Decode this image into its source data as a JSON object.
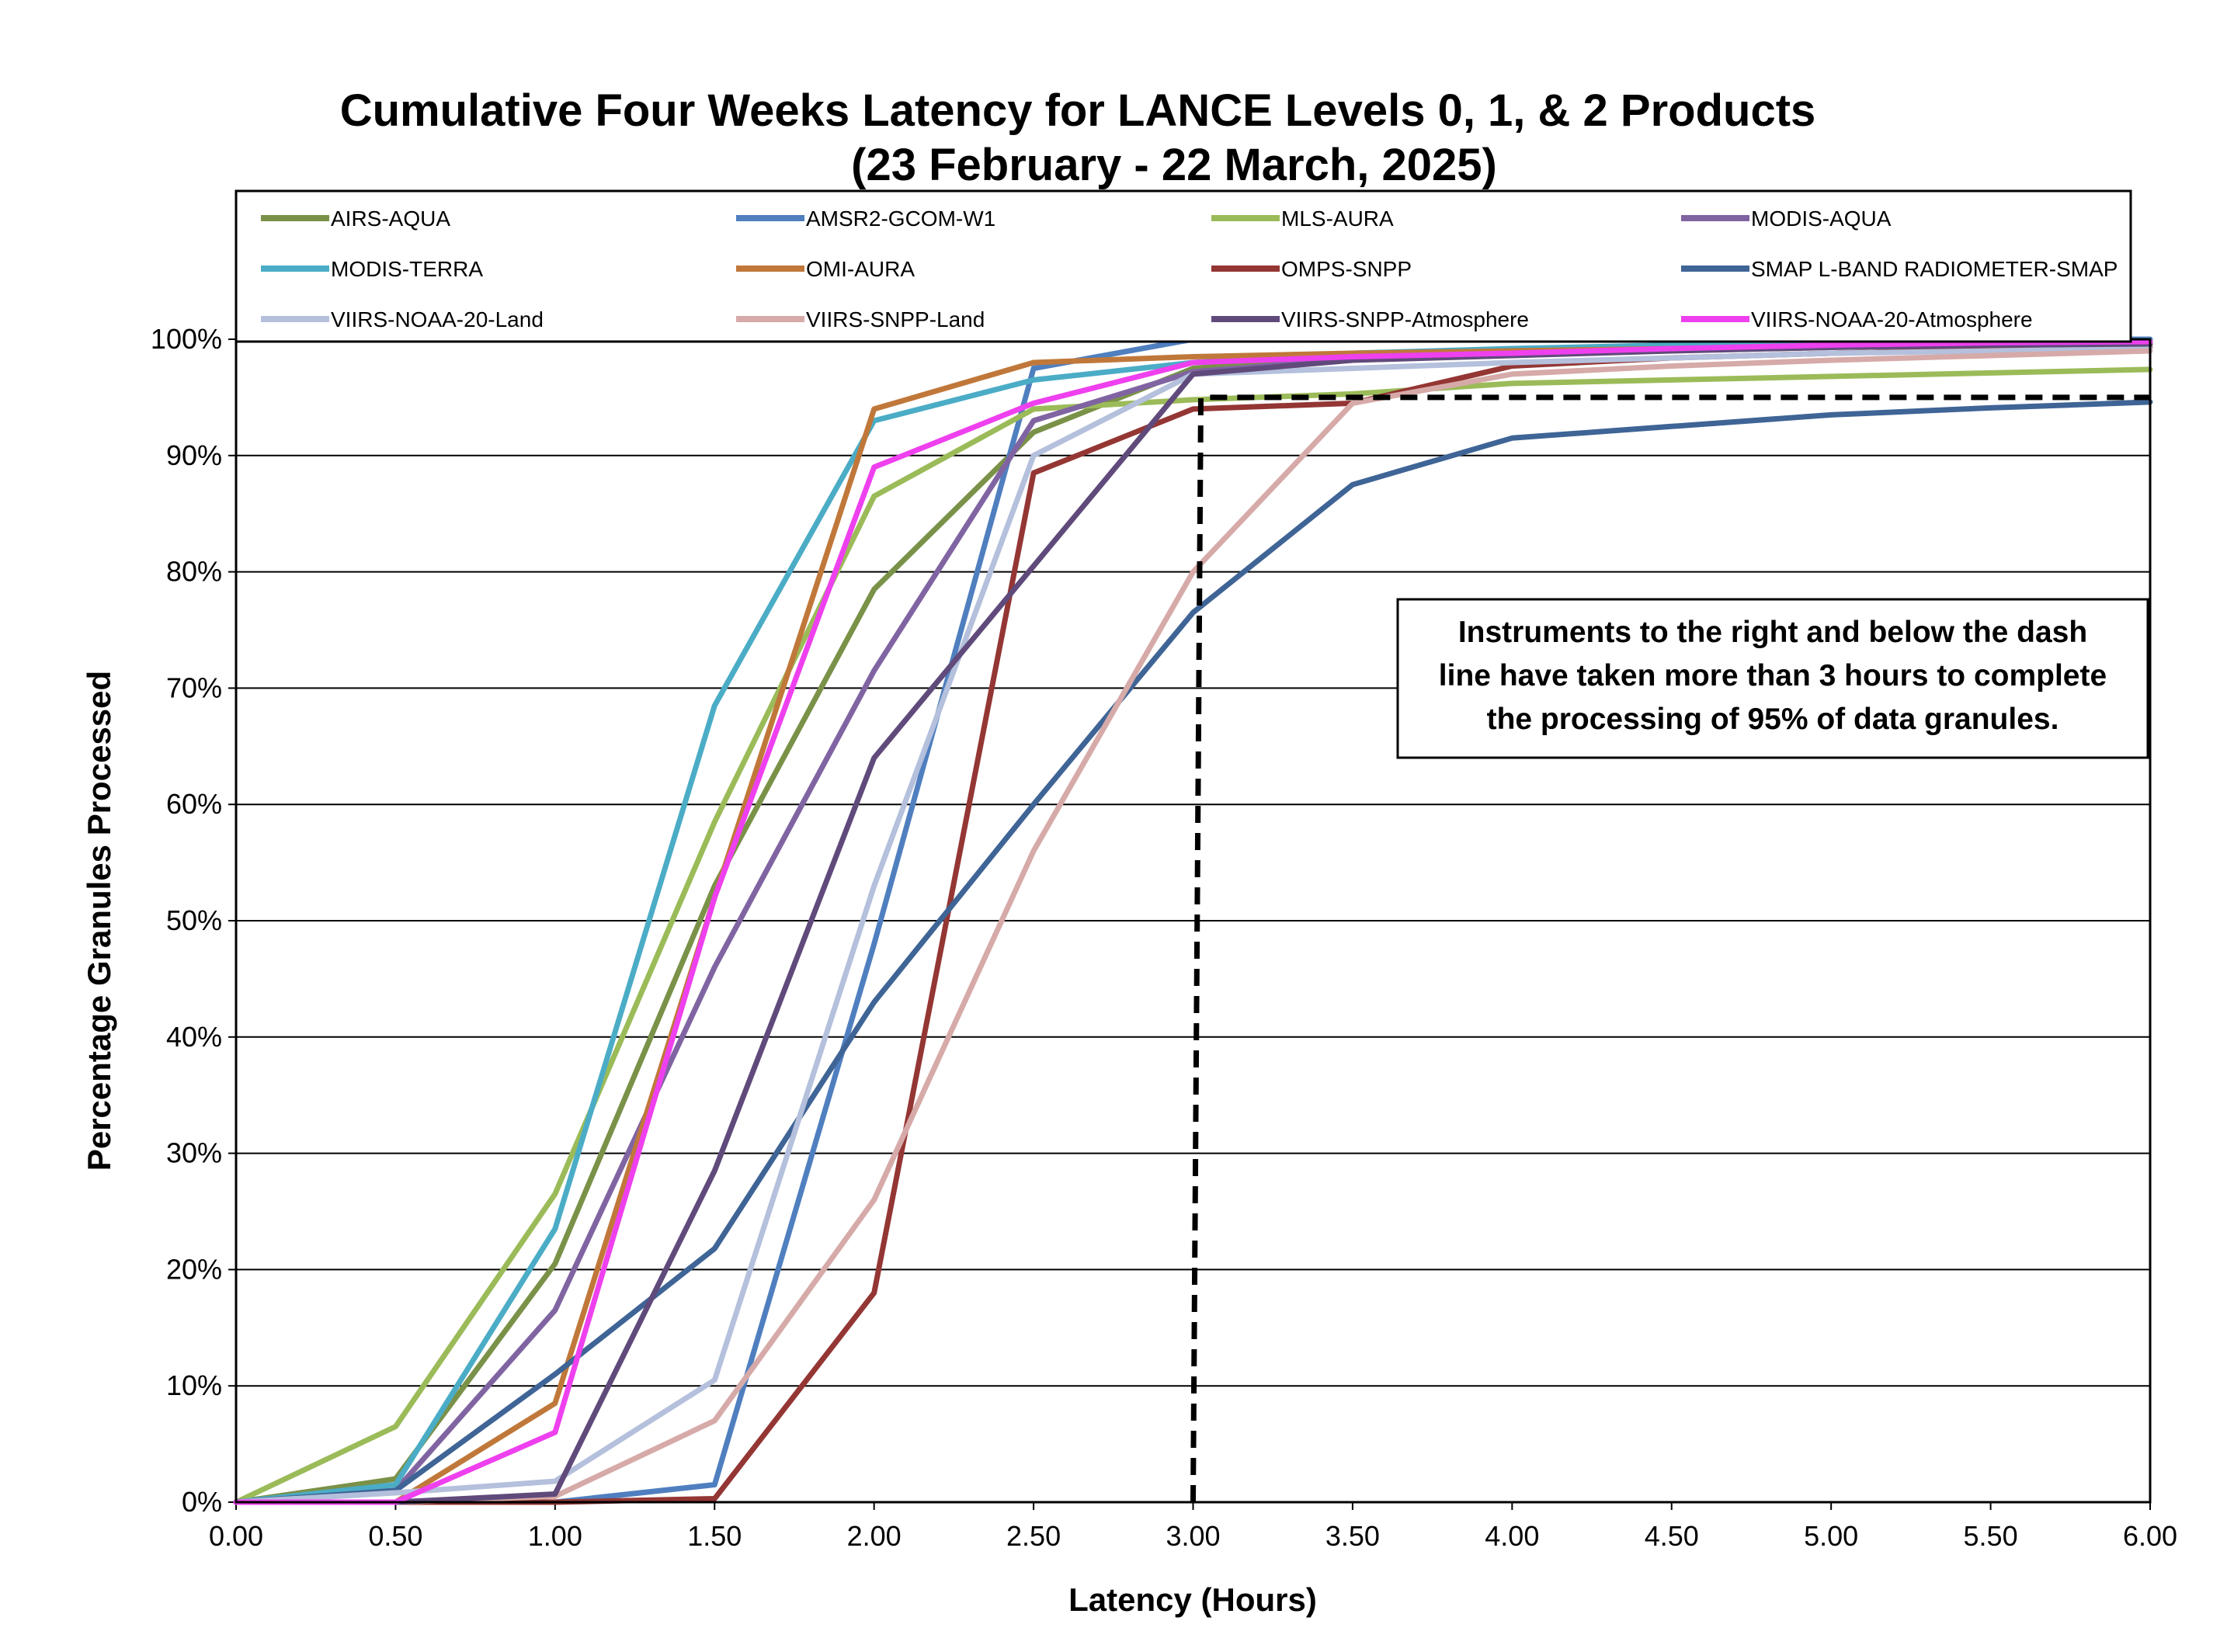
{
  "chart_data": {
    "type": "line",
    "title": "Cumulative Four Weeks Latency  for LANCE Levels 0, 1, & 2 Products",
    "subtitle": "(23  February   -  22  March,  2025)",
    "xlabel": "Latency (Hours)",
    "ylabel": "Percentage Granules Processed",
    "xlim": [
      0,
      6
    ],
    "ylim": [
      0,
      100
    ],
    "x_tick_labels": [
      "0.00",
      "0.50",
      "1.00",
      "1.50",
      "2.00",
      "2.50",
      "3.00",
      "3.50",
      "4.00",
      "4.50",
      "5.00",
      "5.50",
      "6.00"
    ],
    "y_tick_labels": [
      "0%",
      "10%",
      "20%",
      "30%",
      "40%",
      "50%",
      "60%",
      "70%",
      "80%",
      "90%",
      "100%"
    ],
    "grid": "horizontal",
    "legend_position": "top",
    "x": [
      0,
      0.5,
      1.0,
      1.5,
      2.0,
      2.5,
      3.0,
      3.5,
      4.0,
      4.5,
      5.0,
      5.5,
      6.0
    ],
    "series": [
      {
        "name": "AIRS-AQUA",
        "color": "#7a9148",
        "values": [
          0,
          2,
          20.5,
          53,
          78.5,
          92,
          97.5,
          98.5,
          99,
          99.3,
          99.5,
          99.7,
          99.8
        ]
      },
      {
        "name": "AMSR2-GCOM-W1",
        "color": "#4f7fbf",
        "values": [
          0,
          0,
          0,
          1.5,
          48,
          97.5,
          100,
          100,
          100,
          100,
          100,
          100,
          100
        ]
      },
      {
        "name": "MLS-AURA",
        "color": "#9bbb59",
        "values": [
          0,
          6.5,
          26.5,
          58.5,
          86.5,
          94,
          94.8,
          95.3,
          96.2,
          96.5,
          96.8,
          97.1,
          97.4
        ]
      },
      {
        "name": "MODIS-AQUA",
        "color": "#8064a2",
        "values": [
          0,
          1,
          16.5,
          46,
          71.5,
          93,
          97.2,
          98.3,
          98.8,
          99.2,
          99.5,
          99.7,
          99.8
        ]
      },
      {
        "name": "MODIS-TERRA",
        "color": "#4bacc6",
        "values": [
          0,
          1.5,
          23.5,
          68.5,
          93,
          96.5,
          98,
          98.8,
          99.2,
          99.5,
          99.7,
          99.8,
          99.9
        ]
      },
      {
        "name": "OMI-AURA",
        "color": "#c0783a",
        "values": [
          0,
          0,
          8.5,
          52,
          94,
          98,
          98.5,
          98.8,
          99,
          99.2,
          99.4,
          99.5,
          99.6
        ]
      },
      {
        "name": "OMPS-SNPP",
        "color": "#943634",
        "values": [
          0,
          0,
          0,
          0.3,
          18,
          88.5,
          94,
          94.5,
          97.7,
          98.4,
          98.8,
          99.1,
          99.3
        ]
      },
      {
        "name": "SMAP L-BAND RADIOMETER-SMAP",
        "color": "#3f6496",
        "values": [
          0,
          1,
          11,
          21.8,
          43,
          60,
          76.5,
          87.5,
          91.5,
          92.5,
          93.5,
          94.1,
          94.6
        ]
      },
      {
        "name": "VIIRS-NOAA-20-Land",
        "color": "#b4c0dc",
        "values": [
          0,
          0.8,
          1.8,
          10.5,
          53,
          90,
          97,
          97.5,
          98,
          98.4,
          98.8,
          99,
          99.2
        ]
      },
      {
        "name": "VIIRS-SNPP-Land",
        "color": "#d6aaa8",
        "values": [
          0,
          0,
          0.5,
          7,
          26,
          56,
          80,
          94.5,
          97,
          97.7,
          98.2,
          98.6,
          99
        ]
      },
      {
        "name": "VIIRS-SNPP-Atmosphere",
        "color": "#604a7b",
        "values": [
          0,
          0,
          0.7,
          28.5,
          64,
          80.5,
          97,
          98.2,
          98.6,
          99,
          99.3,
          99.5,
          99.6
        ]
      },
      {
        "name": "VIIRS-NOAA-20-Atmosphere",
        "color": "#ee40ee",
        "values": [
          0,
          0,
          6,
          52,
          89,
          94.5,
          98,
          98.5,
          98.8,
          99.2,
          99.5,
          99.7,
          99.8
        ]
      }
    ],
    "threshold_line": {
      "x": 3.0,
      "y": 95,
      "style": "dashed",
      "color": "#000000"
    },
    "annotations": [
      {
        "lines": [
          "Instruments to the right and below the dash",
          "line have taken more than 3 hours to complete",
          "the processing of 95% of data granules."
        ]
      }
    ]
  }
}
